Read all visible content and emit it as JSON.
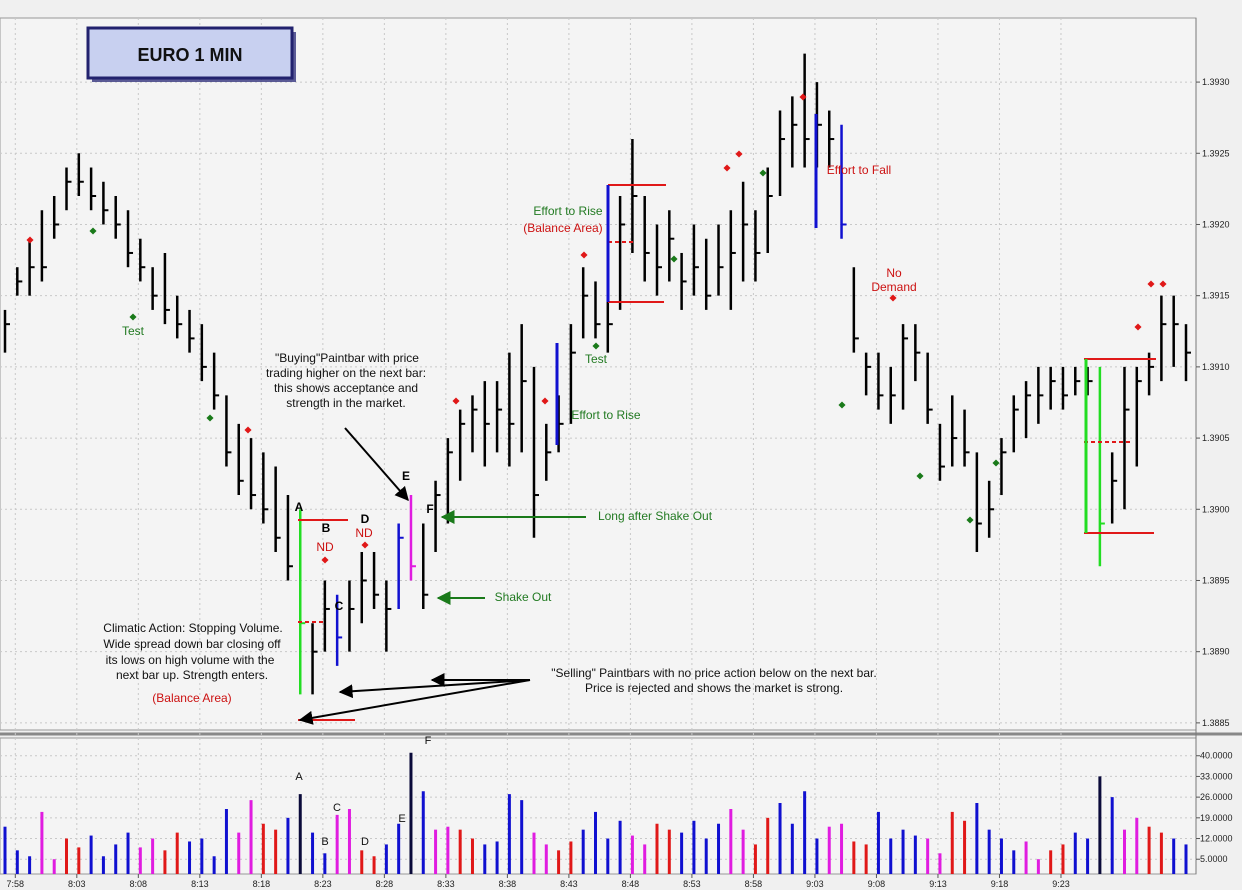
{
  "window": {
    "minimize": "–",
    "restore": "▫",
    "close": "✕"
  },
  "title_box": "EURO 1 MIN",
  "chart_data": {
    "type": "ohlc_bar",
    "title": "EURO 1 MIN",
    "price_ylim": [
      1.38845,
      1.39345
    ],
    "volume_ylim": [
      0,
      46
    ],
    "price_ticks": [
      "1.3885",
      "1.3890",
      "1.3895",
      "1.3900",
      "1.3905",
      "1.3910",
      "1.3915",
      "1.3920",
      "1.3925",
      "1.3930"
    ],
    "volume_ticks": [
      "5.0000",
      "12.0000",
      "19.0000",
      "26.0000",
      "33.0000",
      "40.0000"
    ],
    "x_labels": [
      "7:58",
      "8:03",
      "8:08",
      "8:13",
      "8:18",
      "8:23",
      "8:28",
      "8:33",
      "8:38",
      "8:43",
      "8:48",
      "8:53",
      "8:58",
      "9:03",
      "9:08",
      "9:13",
      "9:18",
      "9:23"
    ],
    "bars": [
      {
        "h": 1.3914,
        "l": 1.3911,
        "c": 1.3913,
        "v": 16
      },
      {
        "h": 1.3917,
        "l": 1.3915,
        "c": 1.3916,
        "v": 8
      },
      {
        "h": 1.3919,
        "l": 1.3915,
        "c": 1.3917,
        "v": 6
      },
      {
        "h": 1.3921,
        "l": 1.3916,
        "c": 1.3917,
        "v": 21
      },
      {
        "h": 1.3922,
        "l": 1.3919,
        "c": 1.392,
        "v": 5
      },
      {
        "h": 1.3924,
        "l": 1.3921,
        "c": 1.3923,
        "v": 12
      },
      {
        "h": 1.3925,
        "l": 1.3922,
        "c": 1.3923,
        "v": 9
      },
      {
        "h": 1.3924,
        "l": 1.3921,
        "c": 1.3922,
        "v": 13
      },
      {
        "h": 1.3923,
        "l": 1.392,
        "c": 1.3921,
        "v": 6
      },
      {
        "h": 1.3922,
        "l": 1.3919,
        "c": 1.392,
        "v": 10
      },
      {
        "h": 1.3921,
        "l": 1.3917,
        "c": 1.3918,
        "v": 14
      },
      {
        "h": 1.3919,
        "l": 1.3916,
        "c": 1.3917,
        "v": 9
      },
      {
        "h": 1.3917,
        "l": 1.3914,
        "c": 1.3915,
        "v": 12
      },
      {
        "h": 1.3918,
        "l": 1.3913,
        "c": 1.3914,
        "v": 8
      },
      {
        "h": 1.3915,
        "l": 1.3912,
        "c": 1.3913,
        "v": 14
      },
      {
        "h": 1.3914,
        "l": 1.3911,
        "c": 1.3912,
        "v": 11
      },
      {
        "h": 1.3913,
        "l": 1.3909,
        "c": 1.391,
        "v": 12
      },
      {
        "h": 1.3911,
        "l": 1.3907,
        "c": 1.3908,
        "v": 6
      },
      {
        "h": 1.3908,
        "l": 1.3903,
        "c": 1.3904,
        "v": 22
      },
      {
        "h": 1.3906,
        "l": 1.3901,
        "c": 1.3902,
        "v": 14
      },
      {
        "h": 1.3905,
        "l": 1.39,
        "c": 1.3901,
        "v": 25
      },
      {
        "h": 1.3904,
        "l": 1.3899,
        "c": 1.39,
        "v": 17
      },
      {
        "h": 1.3903,
        "l": 1.3897,
        "c": 1.3898,
        "v": 15
      },
      {
        "h": 1.3901,
        "l": 1.3895,
        "c": 1.3896,
        "v": 19
      },
      {
        "h": 1.39,
        "l": 1.3887,
        "c": 1.3892,
        "v": 27
      },
      {
        "h": 1.3892,
        "l": 1.3887,
        "c": 1.389,
        "v": 14
      },
      {
        "h": 1.3895,
        "l": 1.389,
        "c": 1.3893,
        "v": 7
      },
      {
        "h": 1.3894,
        "l": 1.3889,
        "c": 1.3891,
        "v": 20
      },
      {
        "h": 1.3895,
        "l": 1.389,
        "c": 1.3893,
        "v": 22
      },
      {
        "h": 1.3897,
        "l": 1.3892,
        "c": 1.3895,
        "v": 8
      },
      {
        "h": 1.3897,
        "l": 1.3893,
        "c": 1.3894,
        "v": 6
      },
      {
        "h": 1.3895,
        "l": 1.389,
        "c": 1.3893,
        "v": 10
      },
      {
        "h": 1.3899,
        "l": 1.3893,
        "c": 1.3898,
        "v": 17
      },
      {
        "h": 1.3901,
        "l": 1.3895,
        "c": 1.3896,
        "v": 41
      },
      {
        "h": 1.3899,
        "l": 1.3893,
        "c": 1.3894,
        "v": 28
      },
      {
        "h": 1.3902,
        "l": 1.3897,
        "c": 1.3901,
        "v": 15
      },
      {
        "h": 1.3905,
        "l": 1.3899,
        "c": 1.3904,
        "v": 16
      },
      {
        "h": 1.3907,
        "l": 1.3902,
        "c": 1.3906,
        "v": 15
      },
      {
        "h": 1.3908,
        "l": 1.3904,
        "c": 1.3907,
        "v": 12
      },
      {
        "h": 1.3909,
        "l": 1.3903,
        "c": 1.3906,
        "v": 10
      },
      {
        "h": 1.3909,
        "l": 1.3904,
        "c": 1.3907,
        "v": 11
      },
      {
        "h": 1.3911,
        "l": 1.3903,
        "c": 1.3906,
        "v": 27
      },
      {
        "h": 1.3913,
        "l": 1.3904,
        "c": 1.3909,
        "v": 25
      },
      {
        "h": 1.391,
        "l": 1.3898,
        "c": 1.3901,
        "v": 14
      },
      {
        "h": 1.3906,
        "l": 1.3902,
        "c": 1.3904,
        "v": 10
      },
      {
        "h": 1.3908,
        "l": 1.3904,
        "c": 1.3906,
        "v": 8
      },
      {
        "h": 1.3913,
        "l": 1.3906,
        "c": 1.3911,
        "v": 11
      },
      {
        "h": 1.3917,
        "l": 1.3912,
        "c": 1.3915,
        "v": 15
      },
      {
        "h": 1.3916,
        "l": 1.3912,
        "c": 1.3913,
        "v": 21
      },
      {
        "h": 1.3915,
        "l": 1.3911,
        "c": 1.3913,
        "v": 12
      },
      {
        "h": 1.3922,
        "l": 1.3914,
        "c": 1.392,
        "v": 18
      },
      {
        "h": 1.3926,
        "l": 1.3918,
        "c": 1.3922,
        "v": 13
      },
      {
        "h": 1.3922,
        "l": 1.3916,
        "c": 1.3918,
        "v": 10
      },
      {
        "h": 1.392,
        "l": 1.3915,
        "c": 1.3917,
        "v": 17
      },
      {
        "h": 1.3921,
        "l": 1.3916,
        "c": 1.3919,
        "v": 15
      },
      {
        "h": 1.3918,
        "l": 1.3914,
        "c": 1.3916,
        "v": 14
      },
      {
        "h": 1.392,
        "l": 1.3915,
        "c": 1.3917,
        "v": 18
      },
      {
        "h": 1.3919,
        "l": 1.3914,
        "c": 1.3915,
        "v": 12
      },
      {
        "h": 1.392,
        "l": 1.3915,
        "c": 1.3917,
        "v": 17
      },
      {
        "h": 1.3921,
        "l": 1.3914,
        "c": 1.3918,
        "v": 22
      },
      {
        "h": 1.3923,
        "l": 1.3916,
        "c": 1.392,
        "v": 15
      },
      {
        "h": 1.3921,
        "l": 1.3916,
        "c": 1.3918,
        "v": 10
      },
      {
        "h": 1.3924,
        "l": 1.3918,
        "c": 1.3922,
        "v": 19
      },
      {
        "h": 1.3928,
        "l": 1.3922,
        "c": 1.3926,
        "v": 24
      },
      {
        "h": 1.3929,
        "l": 1.3924,
        "c": 1.3927,
        "v": 17
      },
      {
        "h": 1.3932,
        "l": 1.3924,
        "c": 1.3926,
        "v": 28
      },
      {
        "h": 1.393,
        "l": 1.3924,
        "c": 1.3927,
        "v": 12
      },
      {
        "h": 1.3928,
        "l": 1.3924,
        "c": 1.3926,
        "v": 16
      },
      {
        "h": 1.3927,
        "l": 1.3919,
        "c": 1.392,
        "v": 17
      },
      {
        "h": 1.3917,
        "l": 1.3911,
        "c": 1.3912,
        "v": 11
      },
      {
        "h": 1.3911,
        "l": 1.3908,
        "c": 1.391,
        "v": 10
      },
      {
        "h": 1.3911,
        "l": 1.3907,
        "c": 1.3908,
        "v": 21
      },
      {
        "h": 1.391,
        "l": 1.3906,
        "c": 1.3908,
        "v": 12
      },
      {
        "h": 1.3913,
        "l": 1.3907,
        "c": 1.3912,
        "v": 15
      },
      {
        "h": 1.3913,
        "l": 1.3909,
        "c": 1.3911,
        "v": 13
      },
      {
        "h": 1.3911,
        "l": 1.3906,
        "c": 1.3907,
        "v": 12
      },
      {
        "h": 1.3906,
        "l": 1.3902,
        "c": 1.3903,
        "v": 7
      },
      {
        "h": 1.3908,
        "l": 1.3903,
        "c": 1.3905,
        "v": 21
      },
      {
        "h": 1.3907,
        "l": 1.3903,
        "c": 1.3904,
        "v": 18
      },
      {
        "h": 1.3904,
        "l": 1.3897,
        "c": 1.3899,
        "v": 24
      },
      {
        "h": 1.3902,
        "l": 1.3898,
        "c": 1.39,
        "v": 15
      },
      {
        "h": 1.3905,
        "l": 1.3901,
        "c": 1.3904,
        "v": 12
      },
      {
        "h": 1.3908,
        "l": 1.3904,
        "c": 1.3907,
        "v": 8
      },
      {
        "h": 1.3909,
        "l": 1.3905,
        "c": 1.3908,
        "v": 11
      },
      {
        "h": 1.391,
        "l": 1.3906,
        "c": 1.3908,
        "v": 5
      },
      {
        "h": 1.391,
        "l": 1.3907,
        "c": 1.3909,
        "v": 8
      },
      {
        "h": 1.391,
        "l": 1.3907,
        "c": 1.3908,
        "v": 10
      },
      {
        "h": 1.391,
        "l": 1.3908,
        "c": 1.3909,
        "v": 14
      },
      {
        "h": 1.391,
        "l": 1.3908,
        "c": 1.3909,
        "v": 12
      },
      {
        "h": 1.391,
        "l": 1.3896,
        "c": 1.3899,
        "v": 33
      },
      {
        "h": 1.3904,
        "l": 1.3899,
        "c": 1.3902,
        "v": 26
      },
      {
        "h": 1.391,
        "l": 1.39,
        "c": 1.3907,
        "v": 15
      },
      {
        "h": 1.391,
        "l": 1.3903,
        "c": 1.3909,
        "v": 19
      },
      {
        "h": 1.3911,
        "l": 1.3908,
        "c": 1.391,
        "v": 16
      },
      {
        "h": 1.3915,
        "l": 1.3909,
        "c": 1.3913,
        "v": 14
      },
      {
        "h": 1.3915,
        "l": 1.391,
        "c": 1.3913,
        "v": 12
      },
      {
        "h": 1.3913,
        "l": 1.3909,
        "c": 1.3911,
        "v": 10
      }
    ],
    "annotations": [
      {
        "text": "Test",
        "color": "#227a22"
      },
      {
        "text": "Test",
        "color": "#227a22"
      },
      {
        "text": "Effort to Rise",
        "color": "#227a22"
      },
      {
        "text": "(Balance Area)",
        "color": "#cc1111"
      },
      {
        "text": "Effort to Rise",
        "color": "#227a22"
      },
      {
        "text": "Effort to Fall",
        "color": "#cc1111"
      },
      {
        "text": "No",
        "color": "#cc1111"
      },
      {
        "text": "Demand",
        "color": "#cc1111"
      },
      {
        "text": "Long after Shake Out",
        "color": "#227a22"
      },
      {
        "text": "Shake Out",
        "color": "#227a22"
      },
      {
        "text": "ND",
        "color": "#cc1111"
      },
      {
        "text": "ND",
        "color": "#cc1111"
      },
      {
        "text": "(Balance Area)",
        "color": "#cc1111"
      },
      {
        "text": "A",
        "color": "#000"
      },
      {
        "text": "B",
        "color": "#000"
      },
      {
        "text": "C",
        "color": "#000"
      },
      {
        "text": "D",
        "color": "#000"
      },
      {
        "text": "E",
        "color": "#000"
      },
      {
        "text": "F",
        "color": "#000"
      }
    ],
    "notes": [
      "\"Buying\"Paintbar with price",
      "trading higher on the next bar:",
      "this shows acceptance and",
      "strength in the market.",
      "Climatic Action: Stopping Volume.",
      "Wide spread down bar closing off",
      "its lows on high volume with the",
      "next bar up. Strength enters.",
      "\"Selling\" Paintbars with no price action below on the next bar.",
      "Price is rejected and shows the market is strong."
    ],
    "volume_labels": [
      "A",
      "B",
      "C",
      "D",
      "E",
      "F"
    ]
  }
}
